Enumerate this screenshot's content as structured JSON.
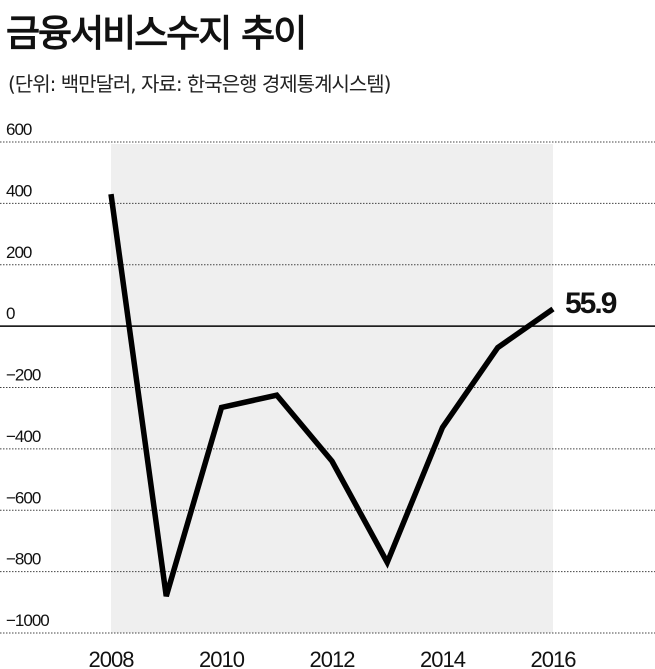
{
  "title": "금융서비스수지 추이",
  "subtitle": "(단위: 백만달러, 자료: 한국은행 경제통계시스템)",
  "chart_data": {
    "type": "line",
    "title": "금융서비스수지 추이",
    "subtitle": "(단위: 백만달러, 자료: 한국은행 경제통계시스템)",
    "x": [
      2008,
      2009,
      2010,
      2011,
      2012,
      2013,
      2014,
      2015,
      2016
    ],
    "x_tick_labels": [
      "2008",
      "2010",
      "2012",
      "2014",
      "2016"
    ],
    "x_tick_values": [
      2008,
      2010,
      2012,
      2014,
      2016
    ],
    "y_tick_labels": [
      "600",
      "400",
      "200",
      "0",
      "−200",
      "−400",
      "−600",
      "−800",
      "−1000"
    ],
    "y_tick_values": [
      600,
      400,
      200,
      0,
      -200,
      -400,
      -600,
      -800,
      -1000
    ],
    "ylim": [
      -1000,
      600
    ],
    "series": [
      {
        "values": [
          430,
          -880,
          -265,
          -225,
          -440,
          -770,
          -330,
          -70,
          55.9
        ]
      }
    ],
    "annotation": {
      "x": 2016,
      "y": 55.9,
      "text": "55.9"
    },
    "colors": {
      "line": "#000000",
      "shade": "#efefef",
      "grid": "#444444",
      "zero": "#000000"
    },
    "grid": true
  }
}
